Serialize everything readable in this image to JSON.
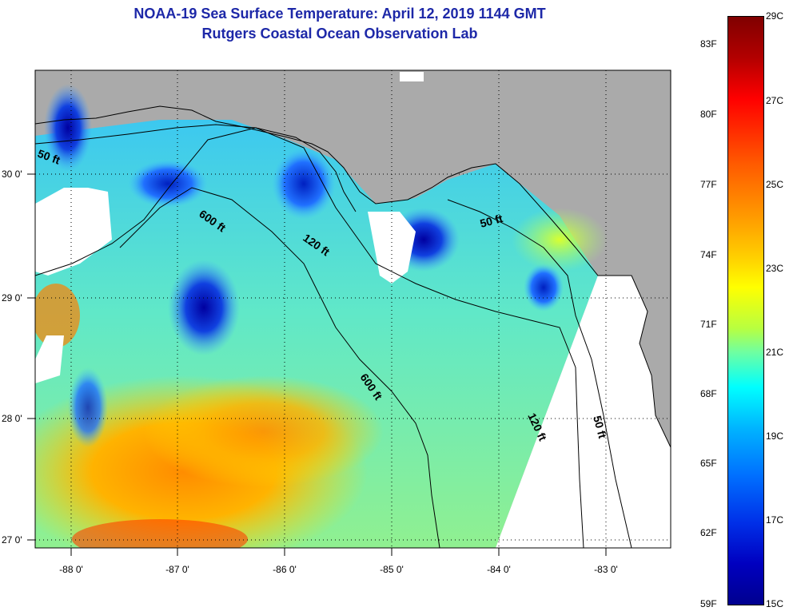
{
  "title": {
    "line1": "NOAA-19 Sea Surface Temperature:  April 12, 2019 1144 GMT",
    "line2": "Rutgers Coastal Ocean Observation Lab"
  },
  "axes": {
    "longitude_labels": [
      "-88 0'",
      "-87 0'",
      "-86 0'",
      "-85 0'",
      "-84 0'",
      "-83 0'"
    ],
    "longitude_values": [
      -88,
      -87,
      -86,
      -85,
      -84,
      -83
    ],
    "latitude_labels": [
      "30 0'",
      "29 0'",
      "28 0'",
      "27 0'"
    ],
    "latitude_values": [
      30,
      29,
      28,
      27
    ],
    "lon_range": [
      -88.35,
      -82.45
    ],
    "lat_range": [
      26.97,
      30.85
    ]
  },
  "colorbar": {
    "fahrenheit_labels": [
      "83F",
      "80F",
      "77F",
      "74F",
      "71F",
      "68F",
      "65F",
      "62F",
      "59F"
    ],
    "celsius_labels": [
      "29C",
      "27C",
      "25C",
      "23C",
      "21C",
      "19C",
      "17C",
      "15C"
    ],
    "range_c": [
      15,
      29
    ]
  },
  "contours": {
    "labels": [
      "50 ft",
      "600 ft",
      "120 ft",
      "50 ft",
      "600 ft",
      "120 ft",
      "50 ft"
    ]
  },
  "colors": {
    "land": "#aaaaaa",
    "no_data": "#ffffff",
    "title": "#1d28a8",
    "contour": "#000000"
  }
}
